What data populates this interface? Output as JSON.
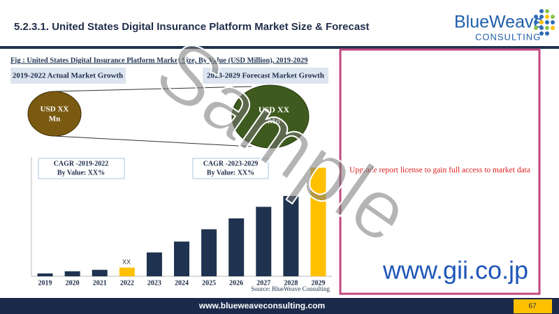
{
  "header": {
    "title": "5.2.3.1. United States Digital Insurance Platform Market Size & Forecast",
    "logo_name": "BlueWeave",
    "logo_sub": "CONSULTING"
  },
  "chart_data": {
    "type": "bar",
    "title": "Fig : United States Digital Insurance Platform Market Size, By Value (USD Million), 2019-2029",
    "categories": [
      "2019",
      "2020",
      "2021",
      "2022",
      "2023",
      "2024",
      "2025",
      "2026",
      "2027",
      "2028",
      "2029"
    ],
    "values": [
      4,
      7,
      9,
      12,
      33,
      48,
      65,
      80,
      96,
      111,
      150
    ],
    "colors": [
      "#1f3350",
      "#1f3350",
      "#1f3350",
      "#ffc000",
      "#1f3350",
      "#1f3350",
      "#1f3350",
      "#1f3350",
      "#1f3350",
      "#1f3350",
      "#ffc000"
    ],
    "ylim": [
      0,
      160
    ],
    "annotations": {
      "actual_period": "2019-2022 Actual Market Growth",
      "forecast_period": "2023-2029 Forecast Market Growth",
      "actual_bubble": [
        "USD XX",
        "Mn"
      ],
      "forecast_bubble": [
        "USD XX",
        "Mn"
      ],
      "cagr_actual": [
        "CAGR -2019-2022",
        "By Value: XX%"
      ],
      "cagr_forecast": [
        "CAGR -2023-2029",
        "By Value: XX%"
      ],
      "bar_label": "XX"
    },
    "source": "Source: BlueWeave Consulting"
  },
  "watermark": "Sample",
  "locked_panel": {
    "message": "Upgrade report license to gain full access to market data"
  },
  "gii": "www.gii.co.jp",
  "footer": {
    "url": "www.blueweaveconsulting.com",
    "page": "67"
  }
}
